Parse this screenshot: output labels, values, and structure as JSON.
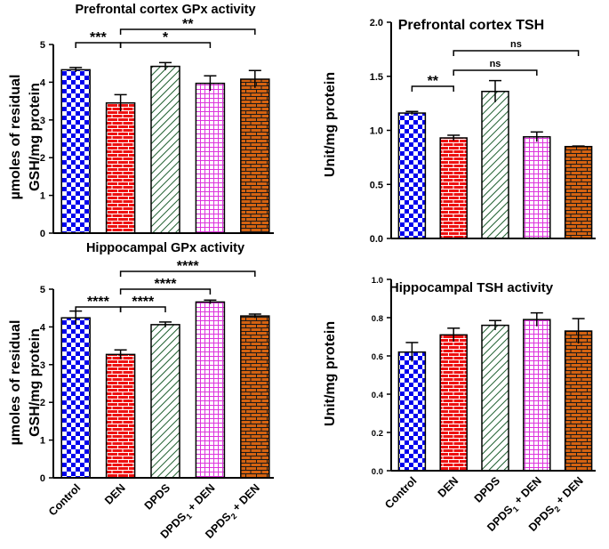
{
  "colors": {
    "Control": "#0000ee",
    "DEN": "#ee1111",
    "DPDS": "#1d5e2e",
    "DPDS1 + DEN": "#dd33dd",
    "DPDS2 + DEN": "#d46211"
  },
  "category_labels": [
    {
      "base": "Control"
    },
    {
      "base": "DEN"
    },
    {
      "base": "DPDS"
    },
    {
      "base": "DPDS",
      "sub": "1",
      "rest": " + DEN"
    },
    {
      "base": "DPDS",
      "sub": "2",
      "rest": " + DEN"
    }
  ],
  "chart_data": [
    {
      "id": "pfc-gpx",
      "type": "bar",
      "title": "Prefrontal cortex GPx activity",
      "ylabel": [
        "µmoles of residual",
        "GSH/mg protein"
      ],
      "categories": [
        "Control",
        "DEN",
        "DPDS",
        "DPDS1 + DEN",
        "DPDS2 + DEN"
      ],
      "values": [
        4.33,
        3.45,
        4.42,
        3.97,
        4.08
      ],
      "errors": [
        0.06,
        0.22,
        0.1,
        0.2,
        0.23
      ],
      "ylim": [
        0,
        5
      ],
      "yticks": [
        "0",
        "1",
        "2",
        "3",
        "4",
        "5"
      ],
      "significance": [
        {
          "from": 0,
          "to": 1,
          "label": "***"
        },
        {
          "from": 1,
          "to": 3,
          "label": "*"
        },
        {
          "from": 1,
          "to": 4,
          "label": "**"
        }
      ]
    },
    {
      "id": "pfc-tsh",
      "type": "bar",
      "title": "Prefrontal cortex TSH",
      "ylabel": [
        "Unit/mg protein"
      ],
      "categories": [
        "Control",
        "DEN",
        "DPDS",
        "DPDS1 + DEN",
        "DPDS2 + DEN"
      ],
      "values": [
        1.16,
        0.93,
        1.36,
        0.94,
        0.85
      ],
      "errors": [
        0.015,
        0.025,
        0.1,
        0.045,
        0.005
      ],
      "ylim": [
        0,
        2.0
      ],
      "yticks": [
        "0.0",
        "0.5",
        "1.0",
        "1.5",
        "2.0"
      ],
      "significance": [
        {
          "from": 0,
          "to": 1,
          "label": "**"
        },
        {
          "from": 1,
          "to": 3,
          "label": "ns"
        },
        {
          "from": 1,
          "to": 4,
          "label": "ns"
        }
      ]
    },
    {
      "id": "hip-gpx",
      "type": "bar",
      "title": "Hippocampal GPx activity",
      "ylabel": [
        "µmoles of residual",
        "GSH/mg protein"
      ],
      "categories": [
        "Control",
        "DEN",
        "DPDS",
        "DPDS1 + DEN",
        "DPDS2 + DEN"
      ],
      "values": [
        4.24,
        3.27,
        4.06,
        4.66,
        4.29
      ],
      "errors": [
        0.18,
        0.12,
        0.07,
        0.05,
        0.05
      ],
      "ylim": [
        0,
        5
      ],
      "yticks": [
        "0",
        "1",
        "2",
        "3",
        "4",
        "5"
      ],
      "significance": [
        {
          "from": 0,
          "to": 1,
          "label": "****"
        },
        {
          "from": 1,
          "to": 2,
          "label": "****"
        },
        {
          "from": 1,
          "to": 3,
          "label": "****"
        },
        {
          "from": 1,
          "to": 4,
          "label": "****"
        }
      ]
    },
    {
      "id": "hip-tsh",
      "type": "bar",
      "title": "Hippocampal TSH activity",
      "ylabel": [
        "Unit/mg protein"
      ],
      "categories": [
        "Control",
        "DEN",
        "DPDS",
        "DPDS1 + DEN",
        "DPDS2 + DEN"
      ],
      "values": [
        0.62,
        0.71,
        0.76,
        0.79,
        0.73
      ],
      "errors": [
        0.05,
        0.035,
        0.025,
        0.035,
        0.065
      ],
      "ylim": [
        0,
        1.0
      ],
      "yticks": [
        "0.0",
        "0.2",
        "0.4",
        "0.6",
        "0.8",
        "1.0"
      ],
      "significance": []
    }
  ]
}
